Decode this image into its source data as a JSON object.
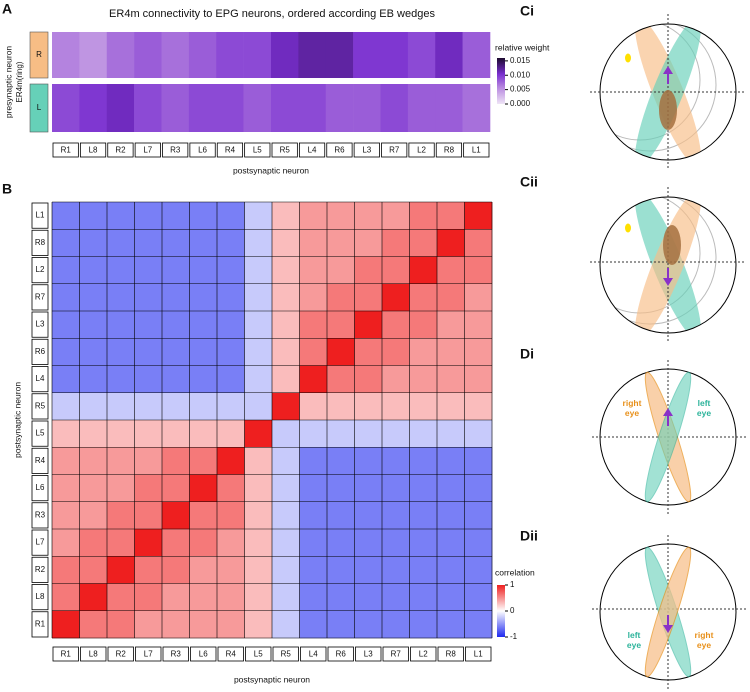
{
  "panel_labels": [
    "A",
    "B",
    "Ci",
    "Cii",
    "Di",
    "Dii"
  ],
  "eye_labels": {
    "Di": [
      "right eye",
      "left eye"
    ],
    "Dii": [
      "left eye",
      "right eye"
    ]
  },
  "chart_data": [
    {
      "type": "heatmap",
      "title": "ER4m connectivity to EPG neurons, ordered according EB wedges",
      "y_label": "presynaptic neuron",
      "y_sublabel": "ER4m(ring)",
      "x_label": "postsynaptic neuron",
      "categories": [
        "R1",
        "L8",
        "R2",
        "L7",
        "R3",
        "L6",
        "R4",
        "L5",
        "R5",
        "L4",
        "R6",
        "L3",
        "R7",
        "L2",
        "R8",
        "L1"
      ],
      "series": [
        {
          "name": "R",
          "color": "#f7bd85",
          "values": [
            0.006,
            0.005,
            0.007,
            0.008,
            0.007,
            0.008,
            0.009,
            0.009,
            0.011,
            0.012,
            0.012,
            0.01,
            0.01,
            0.009,
            0.011,
            0.008
          ]
        },
        {
          "name": "L",
          "color": "#66d0b8",
          "values": [
            0.009,
            0.01,
            0.011,
            0.009,
            0.008,
            0.009,
            0.009,
            0.008,
            0.009,
            0.009,
            0.008,
            0.008,
            0.009,
            0.008,
            0.008,
            0.007
          ]
        }
      ],
      "colorbar_label": "relative weight",
      "clim": [
        0,
        0.016
      ],
      "cticks": [
        {
          "value": 0,
          "label": "0.000"
        },
        {
          "value": 0.005,
          "label": "0.005"
        },
        {
          "value": 0.01,
          "label": "0.010"
        },
        {
          "value": 0.015,
          "label": "0.015"
        }
      ]
    },
    {
      "type": "heatmap",
      "x_label": "postsynaptic neuron",
      "y_label": "postsynaptic neuron",
      "categories": [
        "R1",
        "L8",
        "R2",
        "L7",
        "R3",
        "L6",
        "R4",
        "L5",
        "R5",
        "L4",
        "R6",
        "L3",
        "R7",
        "L2",
        "R8",
        "L1"
      ],
      "y_categories": [
        "L1",
        "R8",
        "L2",
        "R7",
        "L3",
        "R6",
        "L4",
        "R5",
        "L5",
        "R4",
        "L6",
        "R3",
        "L7",
        "R2",
        "L8",
        "R1"
      ],
      "values": [
        [
          -0.6,
          -0.6,
          -0.6,
          -0.6,
          -0.6,
          -0.6,
          -0.6,
          -0.25,
          0.3,
          0.45,
          0.45,
          0.45,
          0.45,
          0.6,
          0.6,
          1
        ],
        [
          -0.6,
          -0.6,
          -0.6,
          -0.6,
          -0.6,
          -0.6,
          -0.6,
          -0.25,
          0.3,
          0.45,
          0.45,
          0.45,
          0.6,
          0.6,
          1,
          0.6
        ],
        [
          -0.6,
          -0.6,
          -0.6,
          -0.6,
          -0.6,
          -0.6,
          -0.6,
          -0.25,
          0.3,
          0.45,
          0.45,
          0.6,
          0.6,
          1,
          0.6,
          0.6
        ],
        [
          -0.6,
          -0.6,
          -0.6,
          -0.6,
          -0.6,
          -0.6,
          -0.6,
          -0.25,
          0.3,
          0.45,
          0.6,
          0.6,
          1,
          0.6,
          0.6,
          0.45
        ],
        [
          -0.6,
          -0.6,
          -0.6,
          -0.6,
          -0.6,
          -0.6,
          -0.6,
          -0.25,
          0.3,
          0.6,
          0.6,
          1,
          0.6,
          0.6,
          0.45,
          0.45
        ],
        [
          -0.6,
          -0.6,
          -0.6,
          -0.6,
          -0.6,
          -0.6,
          -0.6,
          -0.25,
          0.3,
          0.6,
          1,
          0.6,
          0.6,
          0.45,
          0.45,
          0.45
        ],
        [
          -0.6,
          -0.6,
          -0.6,
          -0.6,
          -0.6,
          -0.6,
          -0.6,
          -0.25,
          0.3,
          1,
          0.6,
          0.6,
          0.45,
          0.45,
          0.45,
          0.45
        ],
        [
          -0.25,
          -0.25,
          -0.25,
          -0.25,
          -0.25,
          -0.25,
          -0.25,
          -0.25,
          1,
          0.3,
          0.3,
          0.3,
          0.3,
          0.3,
          0.3,
          0.3
        ],
        [
          0.3,
          0.3,
          0.3,
          0.3,
          0.3,
          0.3,
          0.3,
          1,
          -0.25,
          -0.25,
          -0.25,
          -0.25,
          -0.25,
          -0.25,
          -0.25,
          -0.25
        ],
        [
          0.45,
          0.45,
          0.45,
          0.45,
          0.6,
          0.6,
          1,
          0.3,
          -0.25,
          -0.6,
          -0.6,
          -0.6,
          -0.6,
          -0.6,
          -0.6,
          -0.6
        ],
        [
          0.45,
          0.45,
          0.45,
          0.6,
          0.6,
          1,
          0.6,
          0.3,
          -0.25,
          -0.6,
          -0.6,
          -0.6,
          -0.6,
          -0.6,
          -0.6,
          -0.6
        ],
        [
          0.45,
          0.45,
          0.6,
          0.6,
          1,
          0.6,
          0.6,
          0.3,
          -0.25,
          -0.6,
          -0.6,
          -0.6,
          -0.6,
          -0.6,
          -0.6,
          -0.6
        ],
        [
          0.45,
          0.6,
          0.6,
          1,
          0.6,
          0.6,
          0.45,
          0.3,
          -0.25,
          -0.6,
          -0.6,
          -0.6,
          -0.6,
          -0.6,
          -0.6,
          -0.6
        ],
        [
          0.6,
          0.6,
          1,
          0.6,
          0.6,
          0.45,
          0.45,
          0.3,
          -0.25,
          -0.6,
          -0.6,
          -0.6,
          -0.6,
          -0.6,
          -0.6,
          -0.6
        ],
        [
          0.6,
          1,
          0.6,
          0.6,
          0.45,
          0.45,
          0.45,
          0.3,
          -0.25,
          -0.6,
          -0.6,
          -0.6,
          -0.6,
          -0.6,
          -0.6,
          -0.6
        ],
        [
          1,
          0.6,
          0.6,
          0.45,
          0.45,
          0.45,
          0.45,
          0.3,
          -0.25,
          -0.6,
          -0.6,
          -0.6,
          -0.6,
          -0.6,
          -0.6,
          -0.6
        ]
      ],
      "colorbar_label": "correlation",
      "clim": [
        -1,
        1
      ],
      "cticks": [
        1,
        0,
        -1
      ]
    }
  ]
}
